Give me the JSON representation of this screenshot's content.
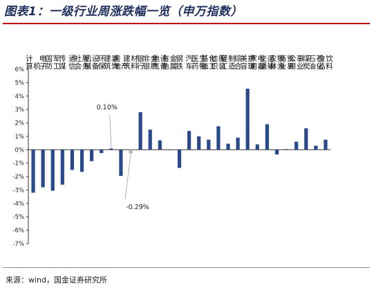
{
  "page": {
    "title": "图表1：一级行业周涨跌幅一览（申万指数）",
    "source": "来源：wind，国金证券研究所"
  },
  "colors": {
    "bar": "#2b4a8c",
    "highlight_bar": "#b8b8b8",
    "title": "#1e2f5e",
    "rule": "#c00000"
  },
  "chart_data": {
    "type": "bar",
    "categories": [
      "计算机",
      "电子",
      "国防军工",
      "传媒",
      "通信",
      "社会服务",
      "机械设备",
      "环保",
      "建筑装饰",
      "房地产",
      "建筑材料",
      "银行",
      "非银金融",
      "电气设备",
      "有色金属",
      "钢铁",
      "汽车",
      "医药生物",
      "基础化工",
      "纺织服装",
      "轻工制造",
      "综合",
      "美容护理",
      "家用电器",
      "交通运输",
      "农林牧渔",
      "商业贸易",
      "公用事业",
      "煤炭",
      "石油石化",
      "食品饮料"
    ],
    "values": [
      -3.2,
      -2.8,
      -3.05,
      -2.6,
      -1.5,
      -1.65,
      -0.85,
      -0.25,
      0.1,
      -1.95,
      -0.29,
      2.8,
      1.5,
      0.7,
      0.0,
      -1.35,
      1.4,
      1.0,
      0.75,
      1.75,
      0.45,
      0.9,
      4.55,
      0.4,
      1.9,
      -0.35,
      0.05,
      0.6,
      1.6,
      0.3,
      0.75
    ],
    "highlight_index": 10,
    "annotations": [
      {
        "text": "0.10%",
        "category_index": 8
      },
      {
        "text": "-0.29%",
        "category_index": 10
      }
    ],
    "ylim": [
      -7,
      6
    ],
    "ytick_step": 1,
    "ytick_labels": [
      "6%",
      "5%",
      "4%",
      "3%",
      "2%",
      "1%",
      "0%",
      "-1%",
      "-2%",
      "-3%",
      "-4%",
      "-5%",
      "-6%",
      "-7%"
    ],
    "legend": "none",
    "grid": false
  }
}
